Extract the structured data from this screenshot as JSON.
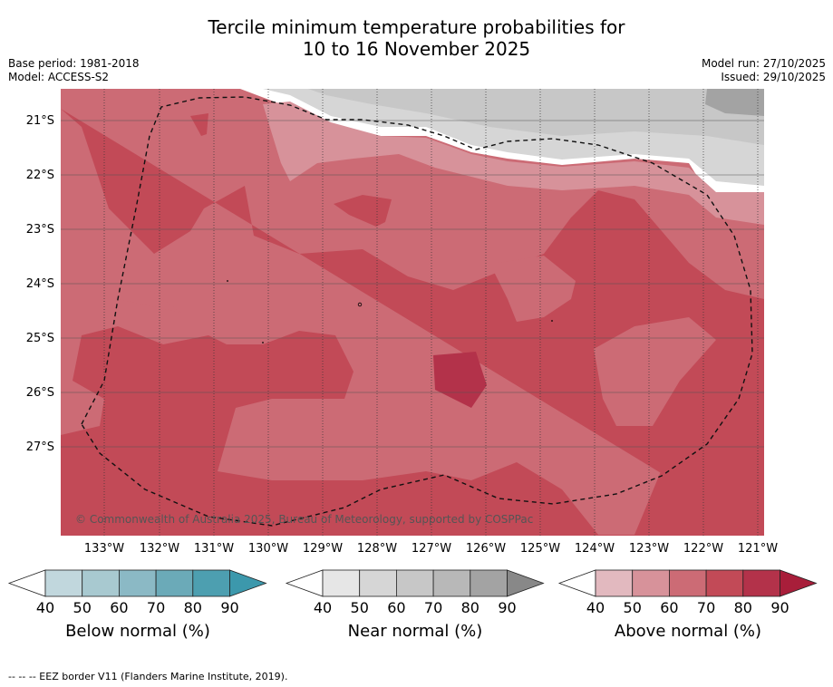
{
  "title": {
    "line1": "Tercile minimum temperature probabilities for",
    "line2": "10 to 16 November 2025"
  },
  "meta": {
    "base_period": "Base period: 1981-2018",
    "model": "Model: ACCESS-S2",
    "model_run": "Model run: 27/10/2025",
    "issued": "Issued: 29/10/2025"
  },
  "map": {
    "copyright": "© Commonwealth of Australia 2025, Bureau of Meteorology, supported by COSPPac",
    "lat_labels": [
      "21°S",
      "22°S",
      "23°S",
      "24°S",
      "25°S",
      "26°S",
      "27°S"
    ],
    "lon_labels": [
      "133°W",
      "132°W",
      "131°W",
      "130°W",
      "129°W",
      "128°W",
      "127°W",
      "126°W",
      "125°W",
      "124°W",
      "123°W",
      "122°W",
      "121°W"
    ]
  },
  "colorbars": [
    {
      "title": "Below normal (%)",
      "ticks": [
        "40",
        "50",
        "60",
        "70",
        "80",
        "90"
      ],
      "colors": [
        "#c1d7dd",
        "#a8c9d0",
        "#8bb9c5",
        "#6baab8",
        "#4d9fb0",
        "#3c98ac"
      ]
    },
    {
      "title": "Near normal (%)",
      "ticks": [
        "40",
        "50",
        "60",
        "70",
        "80",
        "90"
      ],
      "colors": [
        "#e6e6e6",
        "#d6d6d6",
        "#c7c7c7",
        "#b8b8b8",
        "#a3a3a3",
        "#888888"
      ]
    },
    {
      "title": "Above normal (%)",
      "ticks": [
        "40",
        "50",
        "60",
        "70",
        "80",
        "90"
      ],
      "colors": [
        "#e2b9bf",
        "#d7929a",
        "#cc6b75",
        "#c24a57",
        "#b3324a",
        "#a81e3a"
      ]
    }
  ],
  "footer": "--  --  -- EEZ border V11 (Flanders Marine Institute, 2019)."
}
